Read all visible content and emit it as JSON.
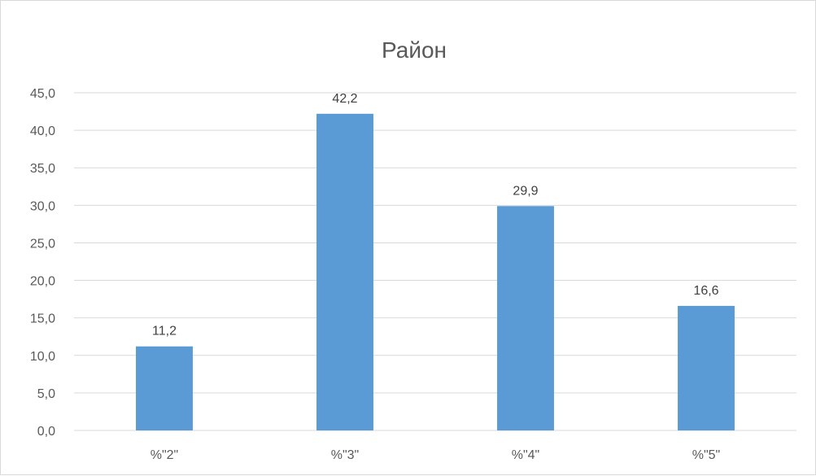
{
  "chart_data": {
    "type": "bar",
    "title": "Район",
    "categories": [
      "%\"2\"",
      "%\"3\"",
      "%\"4\"",
      "%\"5\""
    ],
    "values": [
      11.2,
      42.2,
      29.9,
      16.6
    ],
    "data_labels": [
      "11,2",
      "42,2",
      "29,9",
      "16,6"
    ],
    "y_ticks": [
      "0,0",
      "5,0",
      "10,0",
      "15,0",
      "20,0",
      "25,0",
      "30,0",
      "35,0",
      "40,0",
      "45,0"
    ],
    "ylim": [
      0,
      45
    ],
    "y_step": 5,
    "xlabel": "",
    "ylabel": "",
    "grid": true,
    "legend": "none",
    "bar_color": "#5b9bd5",
    "grid_color": "#d9d9d9"
  }
}
